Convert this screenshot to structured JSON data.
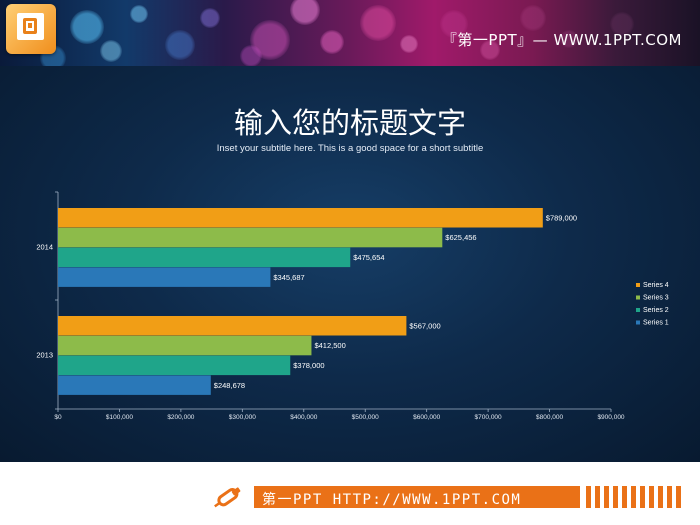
{
  "header": {
    "banner_text": "『第一PPT』— WWW.1PPT.COM",
    "logo_icon": "powerpoint-logo-icon"
  },
  "title": "输入您的标题文字",
  "subtitle": "Inset your subtitle here. This is a good space for a short subtitle",
  "footer": {
    "text": "第一PPT HTTP://WWW.1PPT.COM",
    "icon": "pushpin-icon"
  },
  "colors": {
    "series1": "#2a78b8",
    "series2": "#1fa58a",
    "series3": "#8dbb4a",
    "series4": "#f19e16",
    "accent": "#ea7117"
  },
  "chart_data": {
    "type": "bar",
    "orientation": "horizontal",
    "categories": [
      "2014",
      "2013"
    ],
    "series": [
      {
        "name": "Series 1",
        "values": [
          345687,
          248678
        ],
        "labels": [
          "$345,687",
          "$248,678"
        ]
      },
      {
        "name": "Series 2",
        "values": [
          475654,
          378000
        ],
        "labels": [
          "$475,654",
          "$378,000"
        ]
      },
      {
        "name": "Series 3",
        "values": [
          625456,
          412500
        ],
        "labels": [
          "$625,456",
          "$412,500"
        ]
      },
      {
        "name": "Series 4",
        "values": [
          789000,
          567000
        ],
        "labels": [
          "$789,000",
          "$567,000"
        ]
      }
    ],
    "xlim": [
      0,
      900000
    ],
    "xticks": [
      0,
      100000,
      200000,
      300000,
      400000,
      500000,
      600000,
      700000,
      800000,
      900000
    ],
    "xtick_labels": [
      "$0",
      "$100,000",
      "$200,000",
      "$300,000",
      "$400,000",
      "$500,000",
      "$600,000",
      "$700,000",
      "$800,000",
      "$900,000"
    ],
    "legend": [
      "Series 4",
      "Series 3",
      "Series 2",
      "Series 1"
    ],
    "legend_position": "right",
    "grid": false
  }
}
